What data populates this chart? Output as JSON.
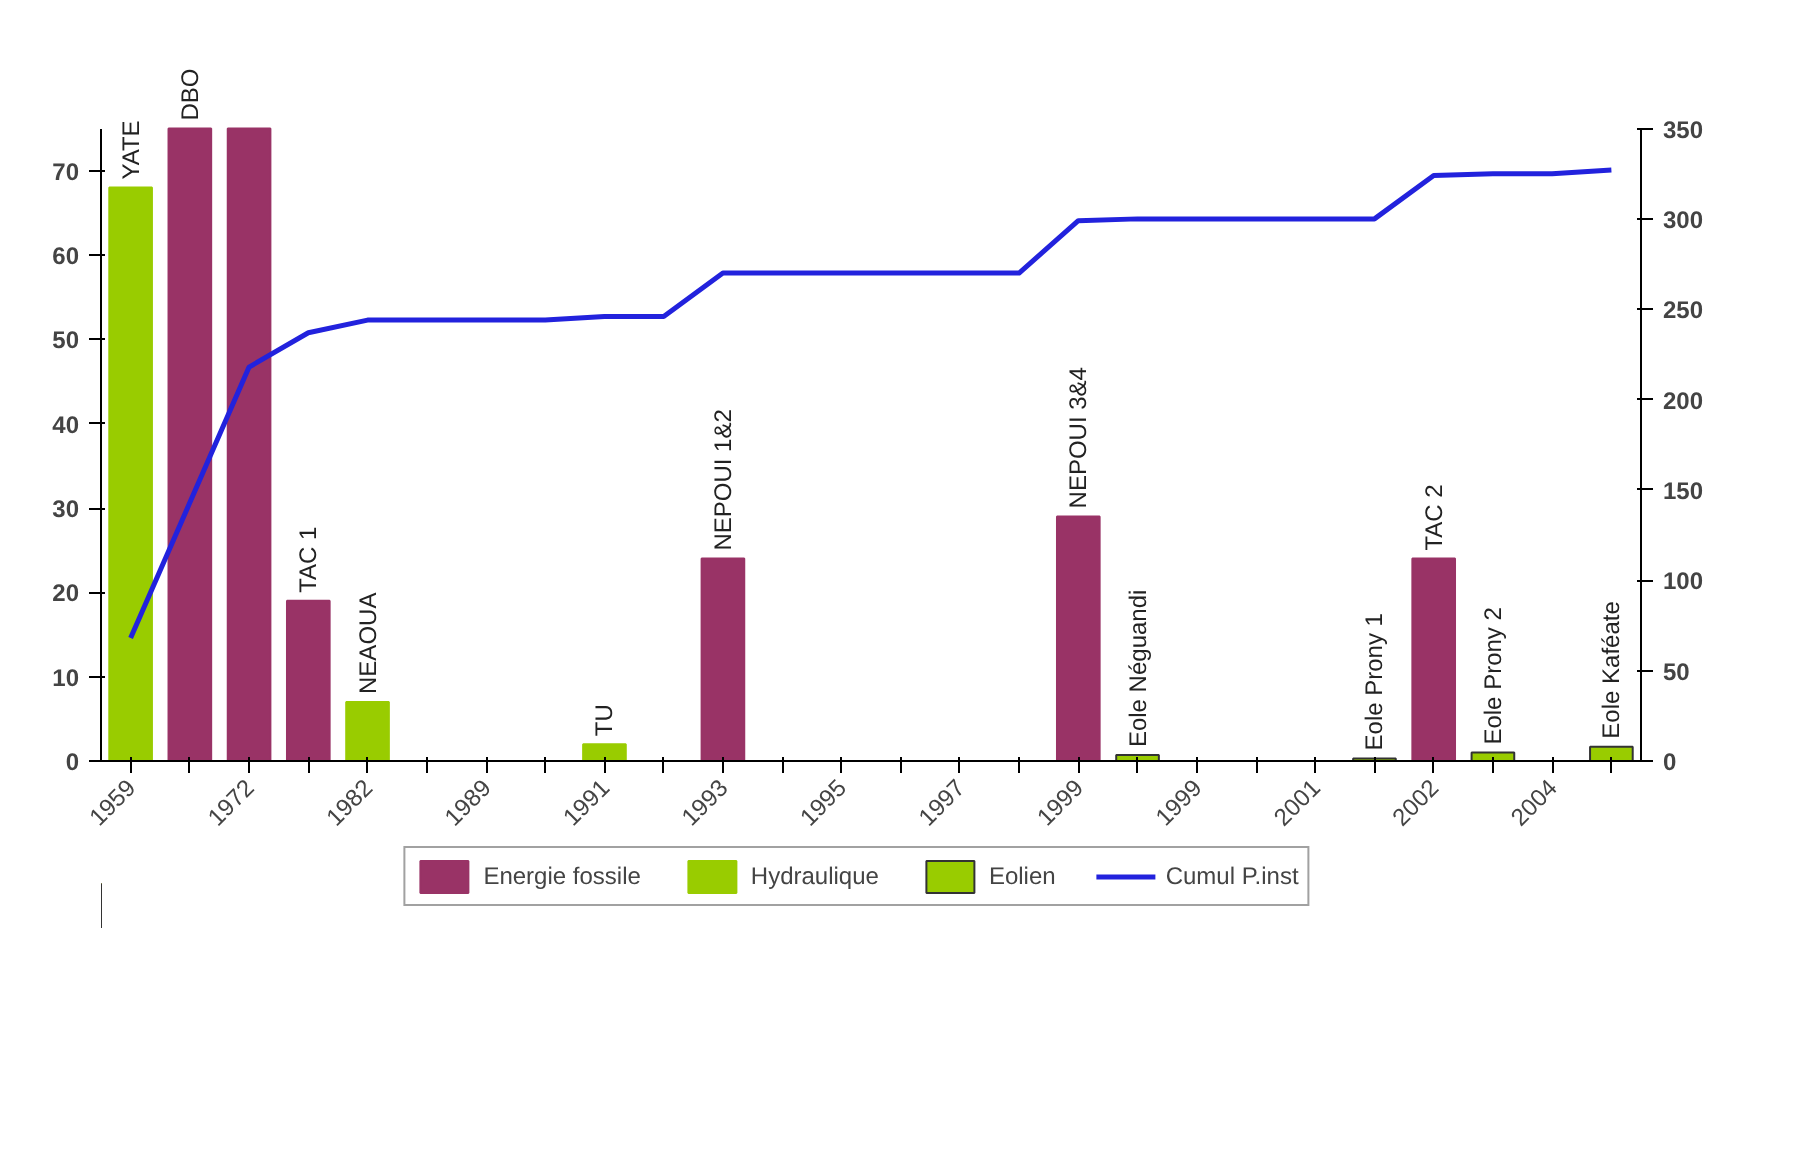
{
  "chart_data": {
    "type": "bar",
    "categories": [
      "1959",
      null,
      "1972",
      null,
      "1982",
      null,
      "1989",
      null,
      "1991",
      null,
      "1993",
      null,
      "1995",
      null,
      "1997",
      null,
      "1999",
      null,
      "1999",
      null,
      "2001",
      null,
      "2002",
      null,
      "2004",
      null
    ],
    "series": [
      {
        "name": "Energie fossile",
        "color": "#993366",
        "values": [
          null,
          75,
          75,
          19,
          null,
          null,
          null,
          null,
          null,
          null,
          24,
          null,
          null,
          null,
          null,
          null,
          29,
          null,
          null,
          null,
          null,
          null,
          24,
          null,
          null,
          null
        ],
        "value_labels": [
          null,
          "DBO",
          null,
          "TAC 1",
          null,
          null,
          null,
          null,
          null,
          null,
          "NEPOUI 1&2",
          null,
          null,
          null,
          null,
          null,
          "NEPOUI 3&4",
          null,
          null,
          null,
          null,
          null,
          "TAC 2",
          null,
          null,
          null
        ]
      },
      {
        "name": "Hydraulique",
        "color": "#99cc00",
        "values": [
          68,
          null,
          null,
          null,
          7,
          null,
          null,
          null,
          2,
          null,
          null,
          null,
          null,
          null,
          null,
          null,
          null,
          null,
          null,
          null,
          null,
          null,
          null,
          null,
          null,
          null
        ],
        "value_labels": [
          "YATE",
          null,
          null,
          null,
          "NEAOUA",
          null,
          null,
          null,
          "TU",
          null,
          null,
          null,
          null,
          null,
          null,
          null,
          null,
          null,
          null,
          null,
          null,
          null,
          null,
          null,
          null,
          null
        ]
      },
      {
        "name": "Eolien",
        "color": "#99cc00",
        "values": [
          null,
          null,
          null,
          null,
          null,
          null,
          null,
          null,
          null,
          null,
          null,
          null,
          null,
          null,
          null,
          null,
          null,
          0.7,
          null,
          null,
          null,
          0.3,
          null,
          1,
          null,
          1.7
        ],
        "value_labels": [
          null,
          null,
          null,
          null,
          null,
          null,
          null,
          null,
          null,
          null,
          null,
          null,
          null,
          null,
          null,
          null,
          null,
          "Eole Néguandi",
          null,
          null,
          null,
          "Eole Prony 1",
          null,
          "Eole Prony 2",
          null,
          "Eole Kaféate"
        ]
      },
      {
        "name": "Cumul P.inst",
        "type": "line",
        "axis": "y2",
        "color": "#2222dd",
        "values": [
          68,
          143,
          218,
          237,
          244,
          244,
          244,
          244,
          246,
          246,
          270,
          270,
          270,
          270,
          270,
          270,
          299,
          300,
          300,
          300,
          300,
          300,
          324,
          325,
          325,
          327
        ]
      }
    ],
    "ylim": [
      0,
      75
    ],
    "yticks": [
      0,
      10,
      20,
      30,
      40,
      50,
      60,
      70
    ],
    "y2lim": [
      0,
      350
    ],
    "y2ticks": [
      0,
      50,
      100,
      150,
      200,
      250,
      300,
      350
    ],
    "grid": false,
    "legend": "bottom"
  }
}
